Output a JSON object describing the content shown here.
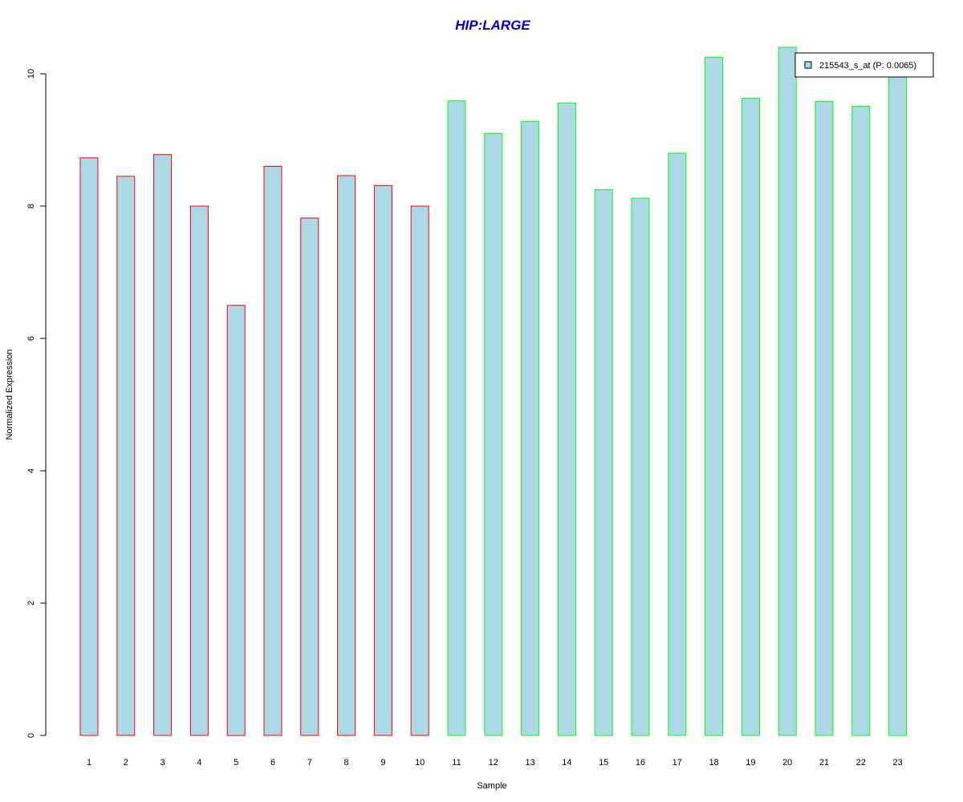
{
  "colors": {
    "bar_fill": "#add8e6",
    "group1_border": "#ff0000",
    "group2_border": "#00ff00",
    "title": "#0000cd",
    "axis": "#000000"
  },
  "chart_data": {
    "type": "bar",
    "title": "HIP:LARGE",
    "xlabel": "Sample",
    "ylabel": "Normalized Expression",
    "ylim": [
      0,
      10
    ],
    "y_ticks": [
      0,
      2,
      4,
      6,
      8,
      10
    ],
    "categories": [
      "1",
      "2",
      "3",
      "4",
      "5",
      "6",
      "7",
      "8",
      "9",
      "10",
      "11",
      "12",
      "13",
      "14",
      "15",
      "16",
      "17",
      "18",
      "19",
      "20",
      "21",
      "22",
      "23"
    ],
    "series": [
      {
        "name": "215543_s_at (P: 0.0065)",
        "values": [
          8.73,
          8.45,
          8.78,
          8.0,
          6.5,
          8.6,
          7.82,
          8.46,
          8.31,
          8.0,
          9.59,
          9.1,
          9.28,
          9.56,
          8.25,
          8.12,
          8.8,
          10.25,
          9.63,
          10.4,
          9.58,
          9.51,
          10.0
        ],
        "groups": [
          1,
          1,
          1,
          1,
          1,
          1,
          1,
          1,
          1,
          1,
          2,
          2,
          2,
          2,
          2,
          2,
          2,
          2,
          2,
          2,
          2,
          2,
          2
        ]
      }
    ],
    "legend_position": "top-right",
    "grid": false
  }
}
